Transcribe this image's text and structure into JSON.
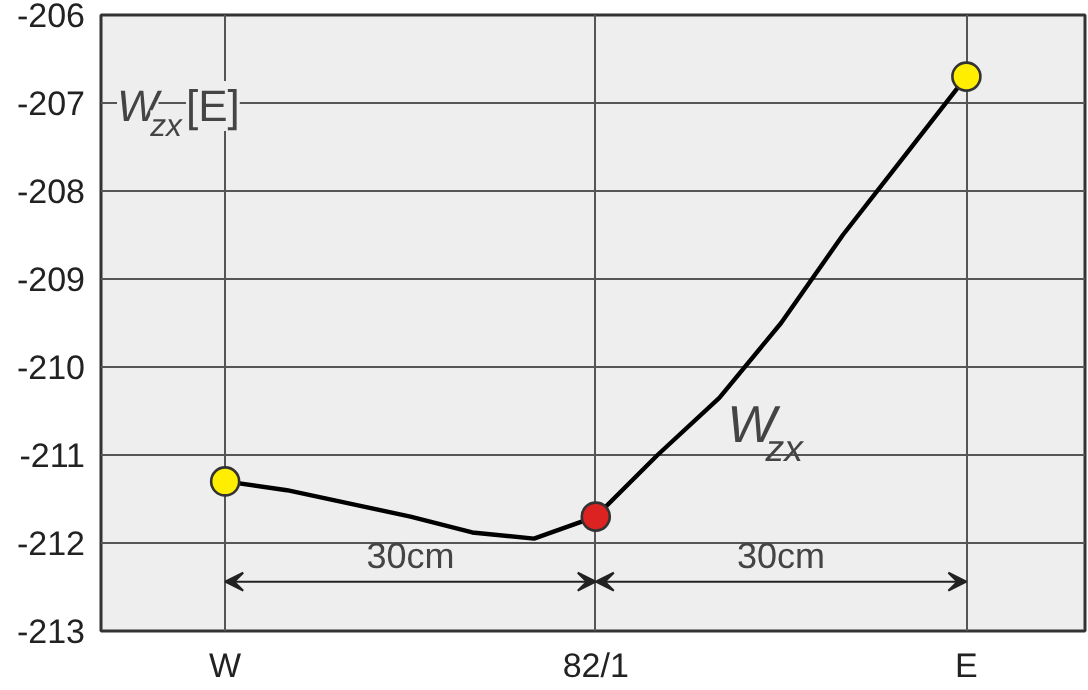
{
  "chart_data": {
    "type": "line",
    "ylabel": "W$_{zx}$[E]",
    "categories": [
      "W",
      null,
      null,
      null,
      null,
      null,
      "82/1",
      null,
      null,
      null,
      null,
      null,
      "E"
    ],
    "ylim": [
      -213,
      -206
    ],
    "yticks": [
      -206,
      -207,
      -208,
      -209,
      -210,
      -211,
      -212,
      -213
    ],
    "grid": true,
    "line_style": "solid",
    "series": [
      {
        "name": "W$_{zx}$",
        "color": "#000000",
        "marker": "none",
        "values": [
          -211.3,
          -211.4,
          -211.55,
          -211.7,
          -211.88,
          -211.95,
          -211.7,
          -211.0,
          -210.35,
          -209.5,
          -208.5,
          -207.6,
          -206.7
        ]
      },
      {
        "type": "scatter",
        "marker": "circle",
        "values": [
          -211.3,
          null,
          null,
          null,
          null,
          null,
          -211.7,
          null,
          null,
          null,
          null,
          null,
          -206.7
        ],
        "colors": [
          "#ffee00",
          null,
          null,
          null,
          null,
          null,
          "#dd2222",
          null,
          null,
          null,
          null,
          null,
          "#ffee00"
        ]
      }
    ],
    "annotations": [
      "30cm",
      "30cm"
    ]
  }
}
